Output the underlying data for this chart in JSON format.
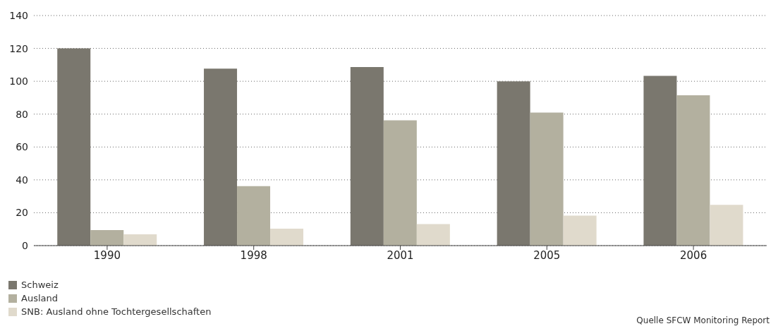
{
  "chart_data": {
    "type": "bar",
    "categories": [
      "1990",
      "1998",
      "2001",
      "2005",
      "2006"
    ],
    "series": [
      {
        "name": "Schweiz",
        "color": "#7a776e",
        "values": [
          120,
          107.7,
          108.6,
          100,
          103.3
        ]
      },
      {
        "name": "Ausland",
        "color": "#b3b09f",
        "values": [
          9.4,
          36.2,
          76.2,
          80.9,
          91.5
        ]
      },
      {
        "name": "SNB: Ausland ohne Tochtergesellschaften",
        "color": "#e0dacc",
        "values": [
          6.9,
          10.3,
          13.1,
          18.3,
          24.8
        ]
      }
    ],
    "ylim": [
      0,
      140
    ],
    "yticks": [
      0,
      20,
      40,
      60,
      80,
      100,
      120,
      140
    ],
    "grid": "y",
    "legend": "bottom left",
    "annotations": [
      "Quelle SFCW Monitoring Report"
    ]
  }
}
